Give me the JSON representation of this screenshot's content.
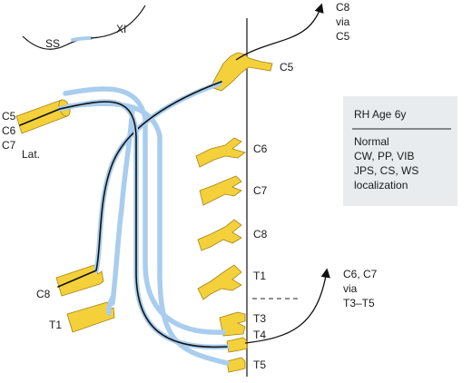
{
  "labels": {
    "ss": "SS",
    "xi": "XI",
    "c5_left": "C5",
    "c6_left": "C6",
    "c7_left": "C7",
    "lat": "Lat.",
    "c8_left": "C8",
    "t1_left": "T1",
    "c5_right": "C5",
    "c6_right": "C6",
    "c7_right": "C7",
    "c8_right": "C8",
    "t1_right": "T1",
    "t3": "T3",
    "t4": "T4",
    "t5": "T5",
    "top_arrow_line1": "C8",
    "top_arrow_line2": "via",
    "top_arrow_line3": "C5",
    "mid_arrow_line1": "C6, C7",
    "mid_arrow_line2": "via",
    "mid_arrow_line3": "T3–T5"
  },
  "info_box": {
    "title": "RH Age 6y",
    "line1": "Normal",
    "line2": "CW, PP, VIB",
    "line3": "JPS, CS, WS",
    "line4": "localization"
  },
  "colors": {
    "nerve_fill": "#f4d13b",
    "graft_blue": "#a9cdee",
    "box_fill": "#e8ecef"
  }
}
